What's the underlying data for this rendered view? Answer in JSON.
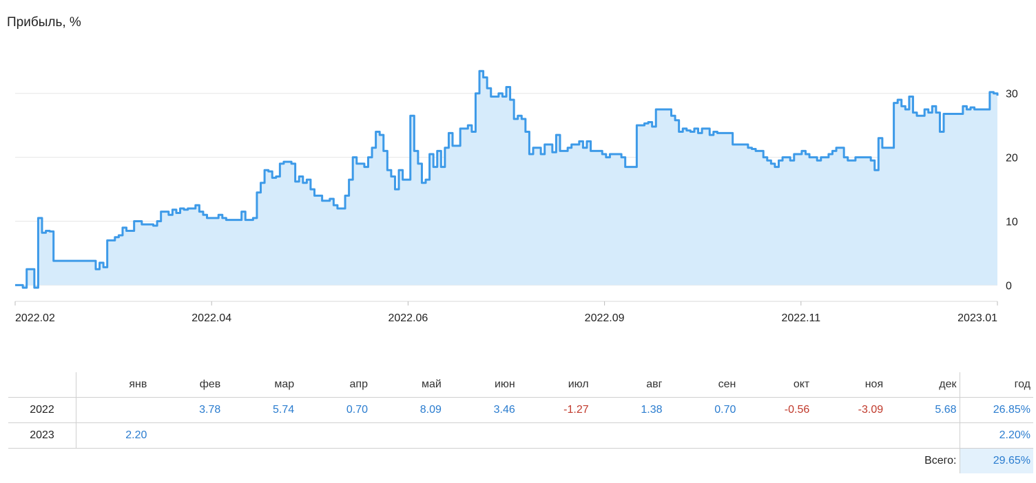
{
  "chart_data": {
    "type": "area",
    "title": "Прибыль, %",
    "ylabel": "",
    "xlabel": "",
    "ylim": [
      -0.6,
      36
    ],
    "y_ticks": [
      0,
      10,
      20,
      30
    ],
    "x_ticks": [
      "2022.02",
      "2022.04",
      "2022.06",
      "2022.09",
      "2022.11",
      "2023.01"
    ],
    "grid": true,
    "series": [
      {
        "color": "#3d9ae8",
        "fill": "#d6ebfb",
        "values": [
          0,
          0,
          -0.4,
          2.5,
          2.5,
          -0.4,
          10.5,
          8.2,
          8.5,
          8.4,
          3.8,
          3.8,
          3.8,
          3.8,
          3.8,
          3.8,
          3.8,
          3.8,
          3.8,
          3.8,
          3.8,
          2.5,
          3.5,
          2.8,
          7.0,
          7.0,
          7.5,
          7.8,
          9.0,
          8.5,
          8.5,
          10.0,
          10.0,
          9.5,
          9.5,
          9.5,
          9.3,
          10.0,
          11.5,
          11.5,
          11.0,
          11.8,
          11.3,
          12.0,
          11.8,
          12.0,
          12.0,
          12.5,
          11.5,
          11.0,
          10.5,
          10.5,
          10.5,
          11.0,
          10.5,
          10.2,
          10.2,
          10.2,
          10.2,
          11.5,
          10.2,
          10.2,
          10.5,
          14.5,
          16.0,
          18.0,
          17.8,
          16.8,
          17.0,
          19.0,
          19.3,
          19.3,
          19.0,
          16.2,
          17.0,
          16.0,
          16.5,
          15.0,
          14.0,
          14.0,
          13.2,
          13.2,
          13.5,
          12.5,
          12.0,
          12.0,
          14.0,
          16.5,
          20.0,
          19.0,
          19.0,
          18.5,
          20.0,
          21.5,
          24.0,
          23.5,
          21.0,
          18.0,
          17.0,
          15.0,
          18.0,
          16.5,
          16.5,
          26.5,
          21.0,
          19.0,
          16.0,
          16.5,
          20.5,
          18.5,
          21.0,
          18.5,
          21.5,
          23.8,
          21.8,
          21.8,
          24.5,
          24.5,
          25.0,
          24.0,
          30.0,
          33.5,
          32.5,
          30.8,
          29.5,
          29.5,
          30.0,
          29.5,
          31.0,
          29.0,
          26.0,
          26.5,
          26.0,
          24.0,
          20.5,
          21.5,
          21.5,
          20.5,
          22.0,
          22.0,
          20.8,
          23.5,
          21.0,
          21.0,
          21.5,
          22.0,
          22.0,
          22.5,
          21.5,
          22.5,
          21.0,
          21.0,
          21.0,
          20.5,
          20.0,
          20.5,
          20.5,
          20.5,
          20.0,
          18.5,
          18.5,
          18.5,
          25.0,
          25.0,
          25.3,
          25.5,
          24.8,
          27.5,
          27.5,
          27.5,
          27.5,
          26.5,
          25.8,
          24.0,
          24.5,
          24.2,
          24.0,
          24.5,
          23.8,
          24.5,
          24.5,
          23.5,
          24.0,
          23.8,
          23.8,
          23.8,
          23.8,
          22.0,
          22.0,
          22.0,
          22.0,
          21.5,
          21.3,
          21.0,
          21.0,
          20.0,
          19.5,
          19.0,
          18.5,
          19.5,
          20.0,
          20.0,
          19.5,
          20.5,
          20.5,
          21.0,
          20.5,
          20.0,
          20.0,
          19.5,
          20.0,
          20.0,
          20.5,
          21.0,
          21.5,
          21.5,
          20.0,
          19.5,
          19.5,
          20.0,
          20.0,
          20.0,
          20.0,
          19.5,
          18.0,
          23.0,
          21.5,
          21.5,
          21.5,
          28.5,
          29.0,
          28.0,
          27.5,
          29.5,
          27.0,
          26.5,
          26.5,
          27.5,
          27.0,
          28.0,
          27.0,
          24.0,
          26.8,
          26.8,
          26.8,
          26.8,
          26.8,
          28.0,
          27.5,
          27.8,
          27.5,
          27.5,
          27.5,
          27.5,
          30.2,
          30.0,
          29.65
        ]
      }
    ]
  },
  "table": {
    "header_months": [
      "янв",
      "фев",
      "мар",
      "апр",
      "май",
      "июн",
      "июл",
      "авг",
      "сен",
      "окт",
      "ноя",
      "дек"
    ],
    "header_year": "год",
    "rows": [
      {
        "year": "2022",
        "values": [
          "",
          "3.78",
          "5.74",
          "0.70",
          "8.09",
          "3.46",
          "-1.27",
          "1.38",
          "0.70",
          "-0.56",
          "-3.09",
          "5.68"
        ],
        "total": "26.85%"
      },
      {
        "year": "2023",
        "values": [
          "2.20",
          "",
          "",
          "",
          "",
          "",
          "",
          "",
          "",
          "",
          "",
          ""
        ],
        "total": "2.20%"
      }
    ],
    "sum_label": "Всего:",
    "sum_value": "29.65%"
  },
  "colors": {
    "positive": "#2a7ccf",
    "negative": "#c0392b",
    "line": "#3d9ae8",
    "area": "#d6ebfb",
    "grid": "#e6e6e6"
  }
}
